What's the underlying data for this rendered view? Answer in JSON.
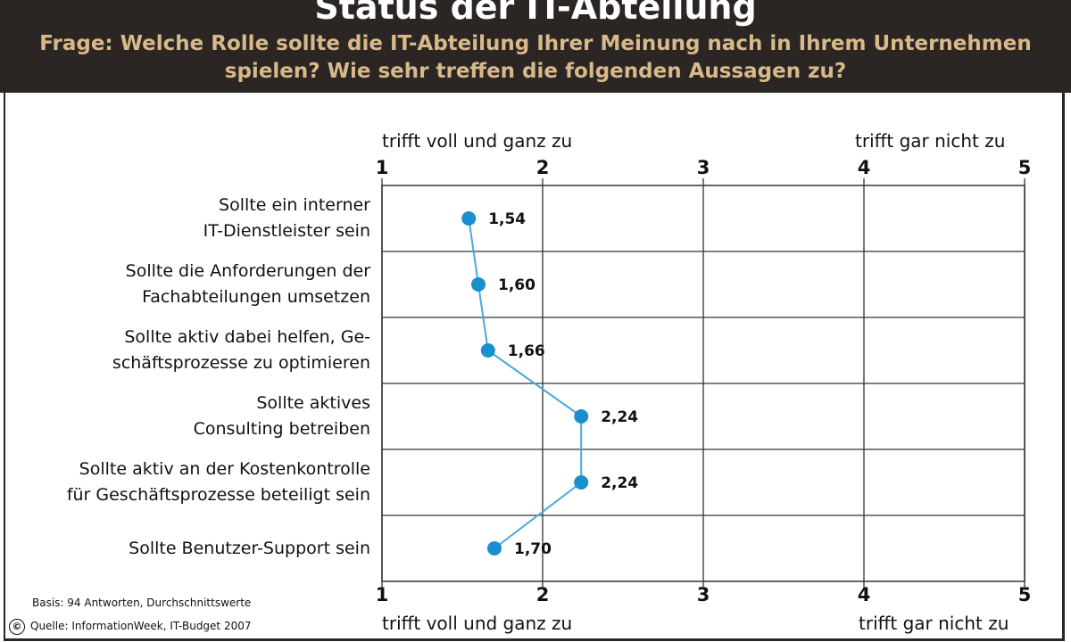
{
  "header": {
    "title": "Status der IT-Abteilung",
    "question_line1": "Frage: Welche Rolle sollte die IT-Abteilung Ihrer Meinung nach in Ihrem Unternehmen",
    "question_line2": "spielen? Wie sehr treffen die folgenden Aussagen zu?"
  },
  "scale": {
    "left_label": "trifft voll und ganz zu",
    "right_label": "trifft gar nicht zu"
  },
  "chart_data": {
    "type": "line",
    "title": "Status der IT-Abteilung",
    "xlim": [
      1,
      5
    ],
    "x_ticks": [
      "1",
      "2",
      "3",
      "4",
      "5"
    ],
    "grid": true,
    "categories": [
      [
        "Sollte ein interner",
        "IT-Dienstleister sein"
      ],
      [
        "Sollte die Anforderungen der",
        "Fachabteilungen umsetzen"
      ],
      [
        "Sollte aktiv dabei helfen, Ge-",
        "schäftsprozesse zu optimieren"
      ],
      [
        "Sollte aktives",
        "Consulting betreiben"
      ],
      [
        "Sollte aktiv an der Kostenkontrolle",
        "für Geschäftsprozesse beteiligt sein"
      ],
      [
        "Sollte Benutzer-Support sein"
      ]
    ],
    "values": [
      1.54,
      1.6,
      1.66,
      2.24,
      2.24,
      1.7
    ],
    "value_labels": [
      "1,54",
      "1,60",
      "1,66",
      "2,24",
      "2,24",
      "1,70"
    ],
    "marker_color": "#1a8fd0",
    "line_color": "#4aa8de"
  },
  "footer": {
    "basis": "Basis: 94 Antworten, Durchschnittswerte",
    "source": "Quelle: InformationWeek, IT-Budget 2007",
    "copyright_symbol": "©"
  }
}
